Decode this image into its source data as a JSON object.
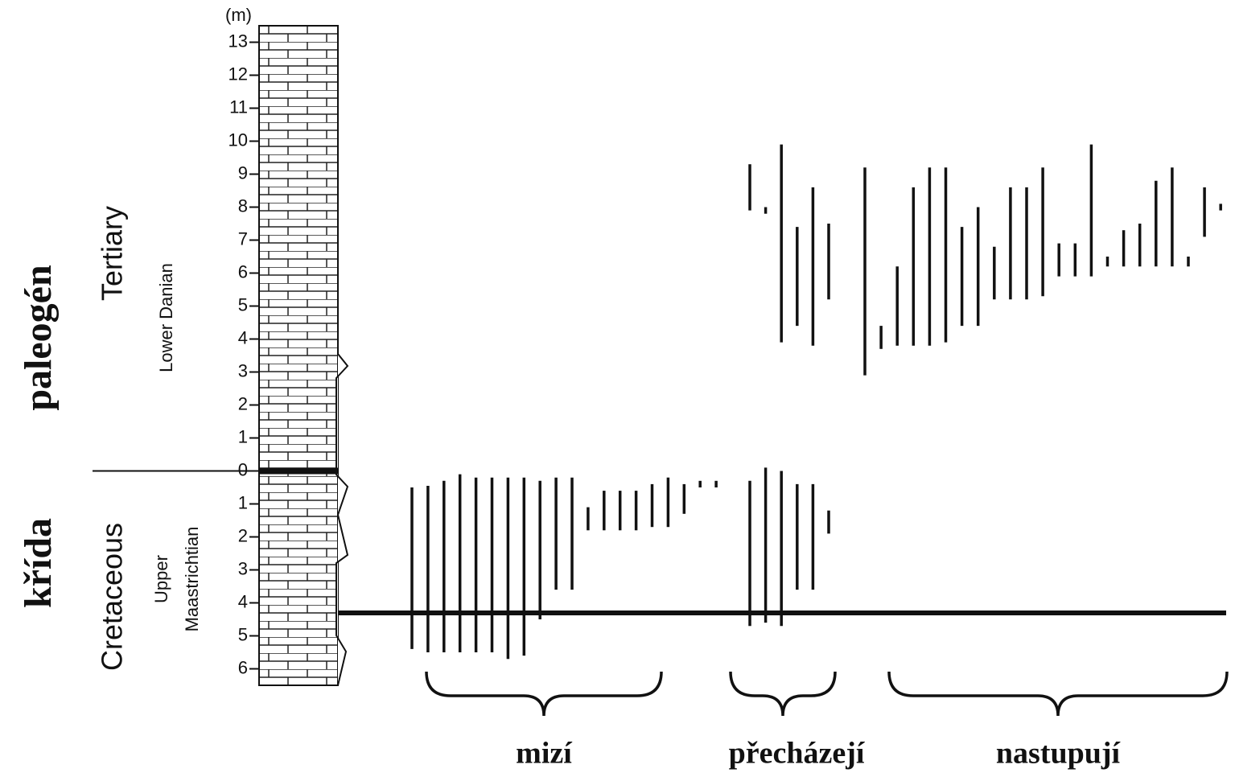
{
  "chart_data": {
    "type": "range",
    "y_label": "(m)",
    "ylim": [
      -6.5,
      13.5
    ],
    "yticks": [
      13,
      12,
      11,
      10,
      9,
      8,
      7,
      6,
      5,
      4,
      3,
      2,
      1,
      0,
      {
        "value": -1,
        "label": "1"
      },
      {
        "value": -2,
        "label": "2"
      },
      {
        "value": -3,
        "label": "3"
      },
      {
        "value": -4,
        "label": "4"
      },
      {
        "value": -5,
        "label": "5"
      },
      {
        "value": -6,
        "label": "6"
      }
    ],
    "periods": [
      {
        "name": "paleogén",
        "system": "Tertiary",
        "stage": "Lower Danian"
      },
      {
        "name": "křída",
        "system": "Cretaceous",
        "stage": [
          "Upper",
          "Maastrichtian"
        ]
      }
    ],
    "groups": [
      {
        "label": "mizí",
        "taxa": [
          [
            [
              -0.5,
              -5.4
            ]
          ],
          [
            [
              -0.45,
              -5.5
            ]
          ],
          [
            [
              -0.3,
              -5.5
            ]
          ],
          [
            [
              -0.1,
              -5.5
            ]
          ],
          [
            [
              -0.2,
              -5.5
            ]
          ],
          [
            [
              -0.2,
              -5.5
            ]
          ],
          [
            [
              -0.2,
              -5.7
            ]
          ],
          [
            [
              -0.2,
              -5.6
            ]
          ],
          [
            [
              -0.3,
              -4.5
            ]
          ],
          [
            [
              -0.2,
              -3.6
            ]
          ],
          [
            [
              -0.2,
              -3.6
            ]
          ],
          [
            [
              -1.1,
              -1.8
            ]
          ],
          [
            [
              -0.6,
              -1.8
            ]
          ],
          [
            [
              -0.6,
              -1.8
            ]
          ],
          [
            [
              -0.6,
              -1.8
            ]
          ],
          [
            [
              -0.4,
              -1.7
            ]
          ],
          [
            [
              -0.2,
              -1.7
            ]
          ],
          [
            [
              -0.4,
              -1.3
            ]
          ],
          [
            [
              -0.3,
              -0.5
            ]
          ],
          [
            [
              -0.3,
              -0.5
            ]
          ]
        ]
      },
      {
        "label": "přecházejí",
        "taxa": [
          [
            [
              9.3,
              7.9
            ],
            [
              -0.3,
              -4.7
            ]
          ],
          [
            [
              8.0,
              7.8
            ],
            [
              0.1,
              -4.6
            ]
          ],
          [
            [
              9.9,
              3.9
            ],
            [
              0.0,
              -4.7
            ]
          ],
          [
            [
              7.4,
              4.4
            ],
            [
              -0.4,
              -3.6
            ]
          ],
          [
            [
              8.6,
              3.8
            ],
            [
              -0.4,
              -3.6
            ]
          ],
          [
            [
              7.5,
              5.2
            ],
            [
              -1.2,
              -1.9
            ]
          ]
        ]
      },
      {
        "label": "nastupují",
        "taxa": [
          [
            [
              9.2,
              2.9
            ]
          ],
          [
            [
              4.4,
              3.7
            ]
          ],
          [
            [
              6.2,
              3.8
            ]
          ],
          [
            [
              8.6,
              3.8
            ]
          ],
          [
            [
              9.2,
              3.8
            ]
          ],
          [
            [
              9.2,
              3.9
            ]
          ],
          [
            [
              7.4,
              4.4
            ]
          ],
          [
            [
              8.0,
              4.4
            ]
          ],
          [
            [
              6.8,
              5.2
            ]
          ],
          [
            [
              8.6,
              5.2
            ]
          ],
          [
            [
              8.6,
              5.2
            ]
          ],
          [
            [
              9.2,
              5.3
            ]
          ],
          [
            [
              6.9,
              5.9
            ]
          ],
          [
            [
              6.9,
              5.9
            ]
          ],
          [
            [
              9.9,
              5.9
            ]
          ],
          [
            [
              6.5,
              6.2
            ]
          ],
          [
            [
              7.3,
              6.2
            ]
          ],
          [
            [
              7.5,
              6.2
            ]
          ],
          [
            [
              8.8,
              6.2
            ]
          ],
          [
            [
              9.2,
              6.2
            ]
          ],
          [
            [
              6.5,
              6.2
            ]
          ],
          [
            [
              8.6,
              7.1
            ]
          ],
          [
            [
              8.1,
              7.9
            ]
          ]
        ]
      }
    ]
  }
}
